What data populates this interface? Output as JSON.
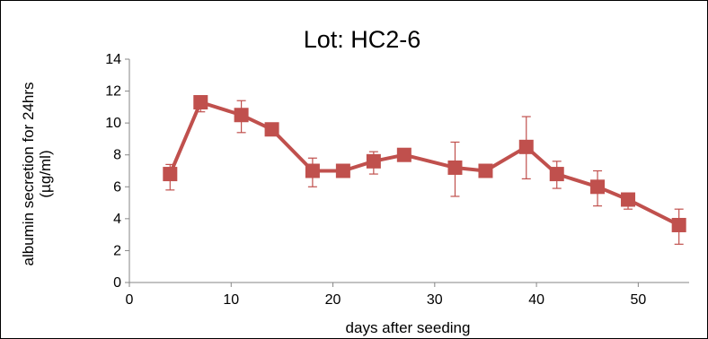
{
  "chart_data": {
    "type": "line",
    "title": "Lot: HC2-6",
    "xlabel": "days after seeding",
    "ylabel_lines": [
      "albumin secretion for 24hrs",
      "(µg/ml)"
    ],
    "xlim": [
      0,
      55
    ],
    "ylim": [
      0,
      14
    ],
    "x_ticks": [
      0,
      10,
      20,
      30,
      40,
      50
    ],
    "y_ticks": [
      0,
      2,
      4,
      6,
      8,
      10,
      12,
      14
    ],
    "grid": false,
    "legend": "none",
    "series": [
      {
        "color": "#C0504D",
        "marker": "square",
        "x": [
          4,
          7,
          11,
          14,
          18,
          21,
          24,
          27,
          32,
          35,
          39,
          42,
          46,
          49,
          54
        ],
        "values": [
          6.8,
          11.3,
          10.5,
          9.6,
          7.0,
          7.0,
          7.6,
          8.0,
          7.2,
          7.0,
          8.5,
          6.8,
          6.0,
          5.2,
          3.6
        ],
        "err_low": [
          1.0,
          0.6,
          1.1,
          0.3,
          1.0,
          0.3,
          0.8,
          0.2,
          1.8,
          0.3,
          2.0,
          0.9,
          1.2,
          0.6,
          1.2
        ],
        "err_high": [
          0.6,
          0.3,
          0.9,
          0.3,
          0.8,
          0.3,
          0.6,
          0.3,
          1.6,
          0.3,
          1.9,
          0.8,
          1.0,
          0.4,
          1.0
        ]
      }
    ]
  }
}
